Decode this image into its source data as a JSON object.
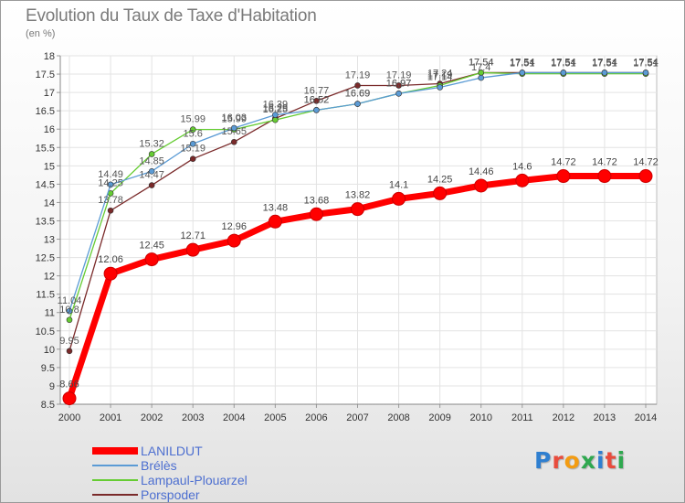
{
  "title": "Evolution du Taux de Taxe d'Habitation",
  "subtitle": "(en %)",
  "brand": "Proxiti",
  "chart_data": {
    "type": "line",
    "title": "Evolution du Taux de Taxe d'Habitation",
    "ylabel": "(en %)",
    "xlabel": "",
    "x": [
      "2000",
      "2001",
      "2002",
      "2003",
      "2004",
      "2005",
      "2006",
      "2007",
      "2008",
      "2009",
      "2010",
      "2011",
      "2012",
      "2013",
      "2014"
    ],
    "ylim": [
      8.5,
      18
    ],
    "yticks": [
      "8.5",
      "9",
      "9.5",
      "10",
      "10.5",
      "11",
      "11.5",
      "12",
      "12.5",
      "13",
      "13.5",
      "14",
      "14.5",
      "15",
      "15.5",
      "16",
      "16.5",
      "17",
      "17.5",
      "18"
    ],
    "grid": true,
    "legend": "bottom-left",
    "series": [
      {
        "name": "LANILDUT",
        "color": "#ff0000",
        "values": [
          8.66,
          12.06,
          12.45,
          12.71,
          12.96,
          13.48,
          13.68,
          13.82,
          14.1,
          14.25,
          14.46,
          14.6,
          14.72,
          14.72,
          14.72
        ],
        "labels": [
          "8.66",
          "12.06",
          "12.45",
          "12.71",
          "12.96",
          "13.48",
          "13.68",
          "13.82",
          "14.1",
          "14.25",
          "14.46",
          "14.6",
          "14.72",
          "14.72",
          "14.72"
        ]
      },
      {
        "name": "Brélès",
        "color": "#5b9bd5",
        "values": [
          11.04,
          14.49,
          14.85,
          15.6,
          16.03,
          16.39,
          16.52,
          16.69,
          16.97,
          17.14,
          17.4,
          17.54,
          17.54,
          17.54,
          17.54
        ],
        "labels": [
          "11.04",
          "14.49",
          "14.85",
          "15.6",
          "16.03",
          "16.39",
          "16.52",
          "16.69",
          "16.97",
          "17.14",
          "17.4",
          "17.54",
          "17.54",
          "17.54",
          "17.54"
        ]
      },
      {
        "name": "Lampaul-Plouarzel",
        "color": "#66cc33",
        "values": [
          10.8,
          14.25,
          15.32,
          15.99,
          15.99,
          16.25,
          16.52,
          16.69,
          16.97,
          17.19,
          17.54,
          17.51,
          17.51,
          17.51,
          17.51
        ],
        "labels": [
          "10.8",
          "14.25",
          "15.32",
          "15.99",
          "15.99",
          "16.25",
          "16.52",
          "16.69",
          "16.97",
          "17.19",
          "17.54",
          "17.51",
          "17.51",
          "17.51",
          "17.51"
        ]
      },
      {
        "name": "Porspoder",
        "color": "#7a2a2a",
        "values": [
          9.95,
          13.78,
          14.47,
          15.19,
          15.65,
          16.29,
          16.77,
          17.19,
          17.19,
          17.24,
          17.54,
          17.54,
          17.54,
          17.54,
          17.54
        ],
        "labels": [
          "9.95",
          "13.78",
          "14.47",
          "15.19",
          "15.65",
          "16.29",
          "16.77",
          "17.19",
          "17.19",
          "17.24",
          "17.54",
          "17.54",
          "17.54",
          "17.54",
          "17.54"
        ]
      }
    ]
  }
}
